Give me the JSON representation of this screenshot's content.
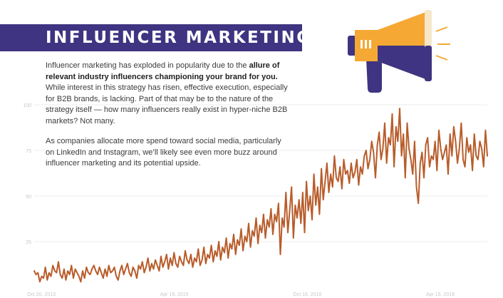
{
  "header": {
    "title": "INFLUENCER MARKETING"
  },
  "paragraphs": [
    {
      "before": "Influencer marketing has exploded in popularity due to the ",
      "bold": "allure of relevant industry influencers championing your brand for you.",
      "after": " While interest in this strategy has risen, effective execution, especially for B2B brands, is lacking. Part of that may be to the nature of the strategy itself — how many influencers really exist in hyper-niche B2B markets? Not many."
    },
    {
      "text": "As companies allocate more spend toward social media, particularly on LinkedIn and Instagram, we’ll likely see even more buzz around influencer marketing and its potential upside."
    }
  ],
  "megaphone": {
    "icon": "megaphone-icon",
    "colors": {
      "purple": "#3f3481",
      "orange": "#f5a934",
      "cream": "#f5e7c8"
    }
  },
  "chart_data": {
    "type": "line",
    "x_tick_labels": [
      "Oct 20, 2013",
      "Apr 19, 2015",
      "Oct 16, 2016",
      "Apr 15, 2018"
    ],
    "y_ticks": [
      25,
      50,
      75,
      100
    ],
    "ylim": [
      0,
      100
    ],
    "grid": true,
    "line_color": "#b85c2a",
    "series": [
      {
        "values": [
          9,
          7,
          8,
          3,
          6,
          5,
          11,
          4,
          8,
          6,
          12,
          9,
          8,
          14,
          7,
          5,
          10,
          4,
          9,
          7,
          12,
          5,
          10,
          8,
          6,
          3,
          9,
          5,
          11,
          8,
          7,
          10,
          12,
          9,
          7,
          11,
          8,
          5,
          10,
          6,
          12,
          8,
          9,
          11,
          6,
          4,
          9,
          12,
          7,
          10,
          13,
          8,
          6,
          11,
          9,
          5,
          12,
          10,
          14,
          8,
          11,
          16,
          9,
          13,
          10,
          15,
          12,
          9,
          17,
          11,
          14,
          18,
          10,
          16,
          12,
          19,
          13,
          11,
          17,
          14,
          12,
          20,
          15,
          13,
          18,
          11,
          16,
          14,
          21,
          12,
          15,
          22,
          13,
          18,
          16,
          23,
          14,
          20,
          17,
          25,
          15,
          22,
          19,
          27,
          16,
          24,
          21,
          29,
          18,
          26,
          23,
          32,
          20,
          28,
          25,
          35,
          22,
          31,
          28,
          38,
          24,
          34,
          30,
          40,
          27,
          37,
          33,
          43,
          29,
          40,
          36,
          46,
          18,
          38,
          33,
          52,
          30,
          42,
          55,
          27,
          45,
          38,
          48,
          35,
          52,
          30,
          58,
          42,
          50,
          37,
          62,
          45,
          55,
          40,
          65,
          48,
          58,
          68,
          52,
          62,
          55,
          72,
          60,
          58,
          66,
          54,
          70,
          62,
          64,
          57,
          68,
          60,
          63,
          70,
          56,
          66,
          62,
          72,
          75,
          65,
          70,
          80,
          74,
          60,
          78,
          85,
          70,
          76,
          90,
          68,
          82,
          78,
          95,
          66,
          88,
          80,
          98,
          72,
          84,
          60,
          90,
          76,
          70,
          62,
          80,
          55,
          46,
          68,
          74,
          60,
          78,
          82,
          66,
          72,
          70,
          80,
          64,
          86,
          76,
          70,
          74,
          78,
          62,
          84,
          72,
          88,
          80,
          68,
          76,
          90,
          70,
          66,
          82,
          74,
          78,
          64,
          84,
          72,
          70,
          80,
          76,
          66,
          86,
          72
        ]
      }
    ]
  }
}
